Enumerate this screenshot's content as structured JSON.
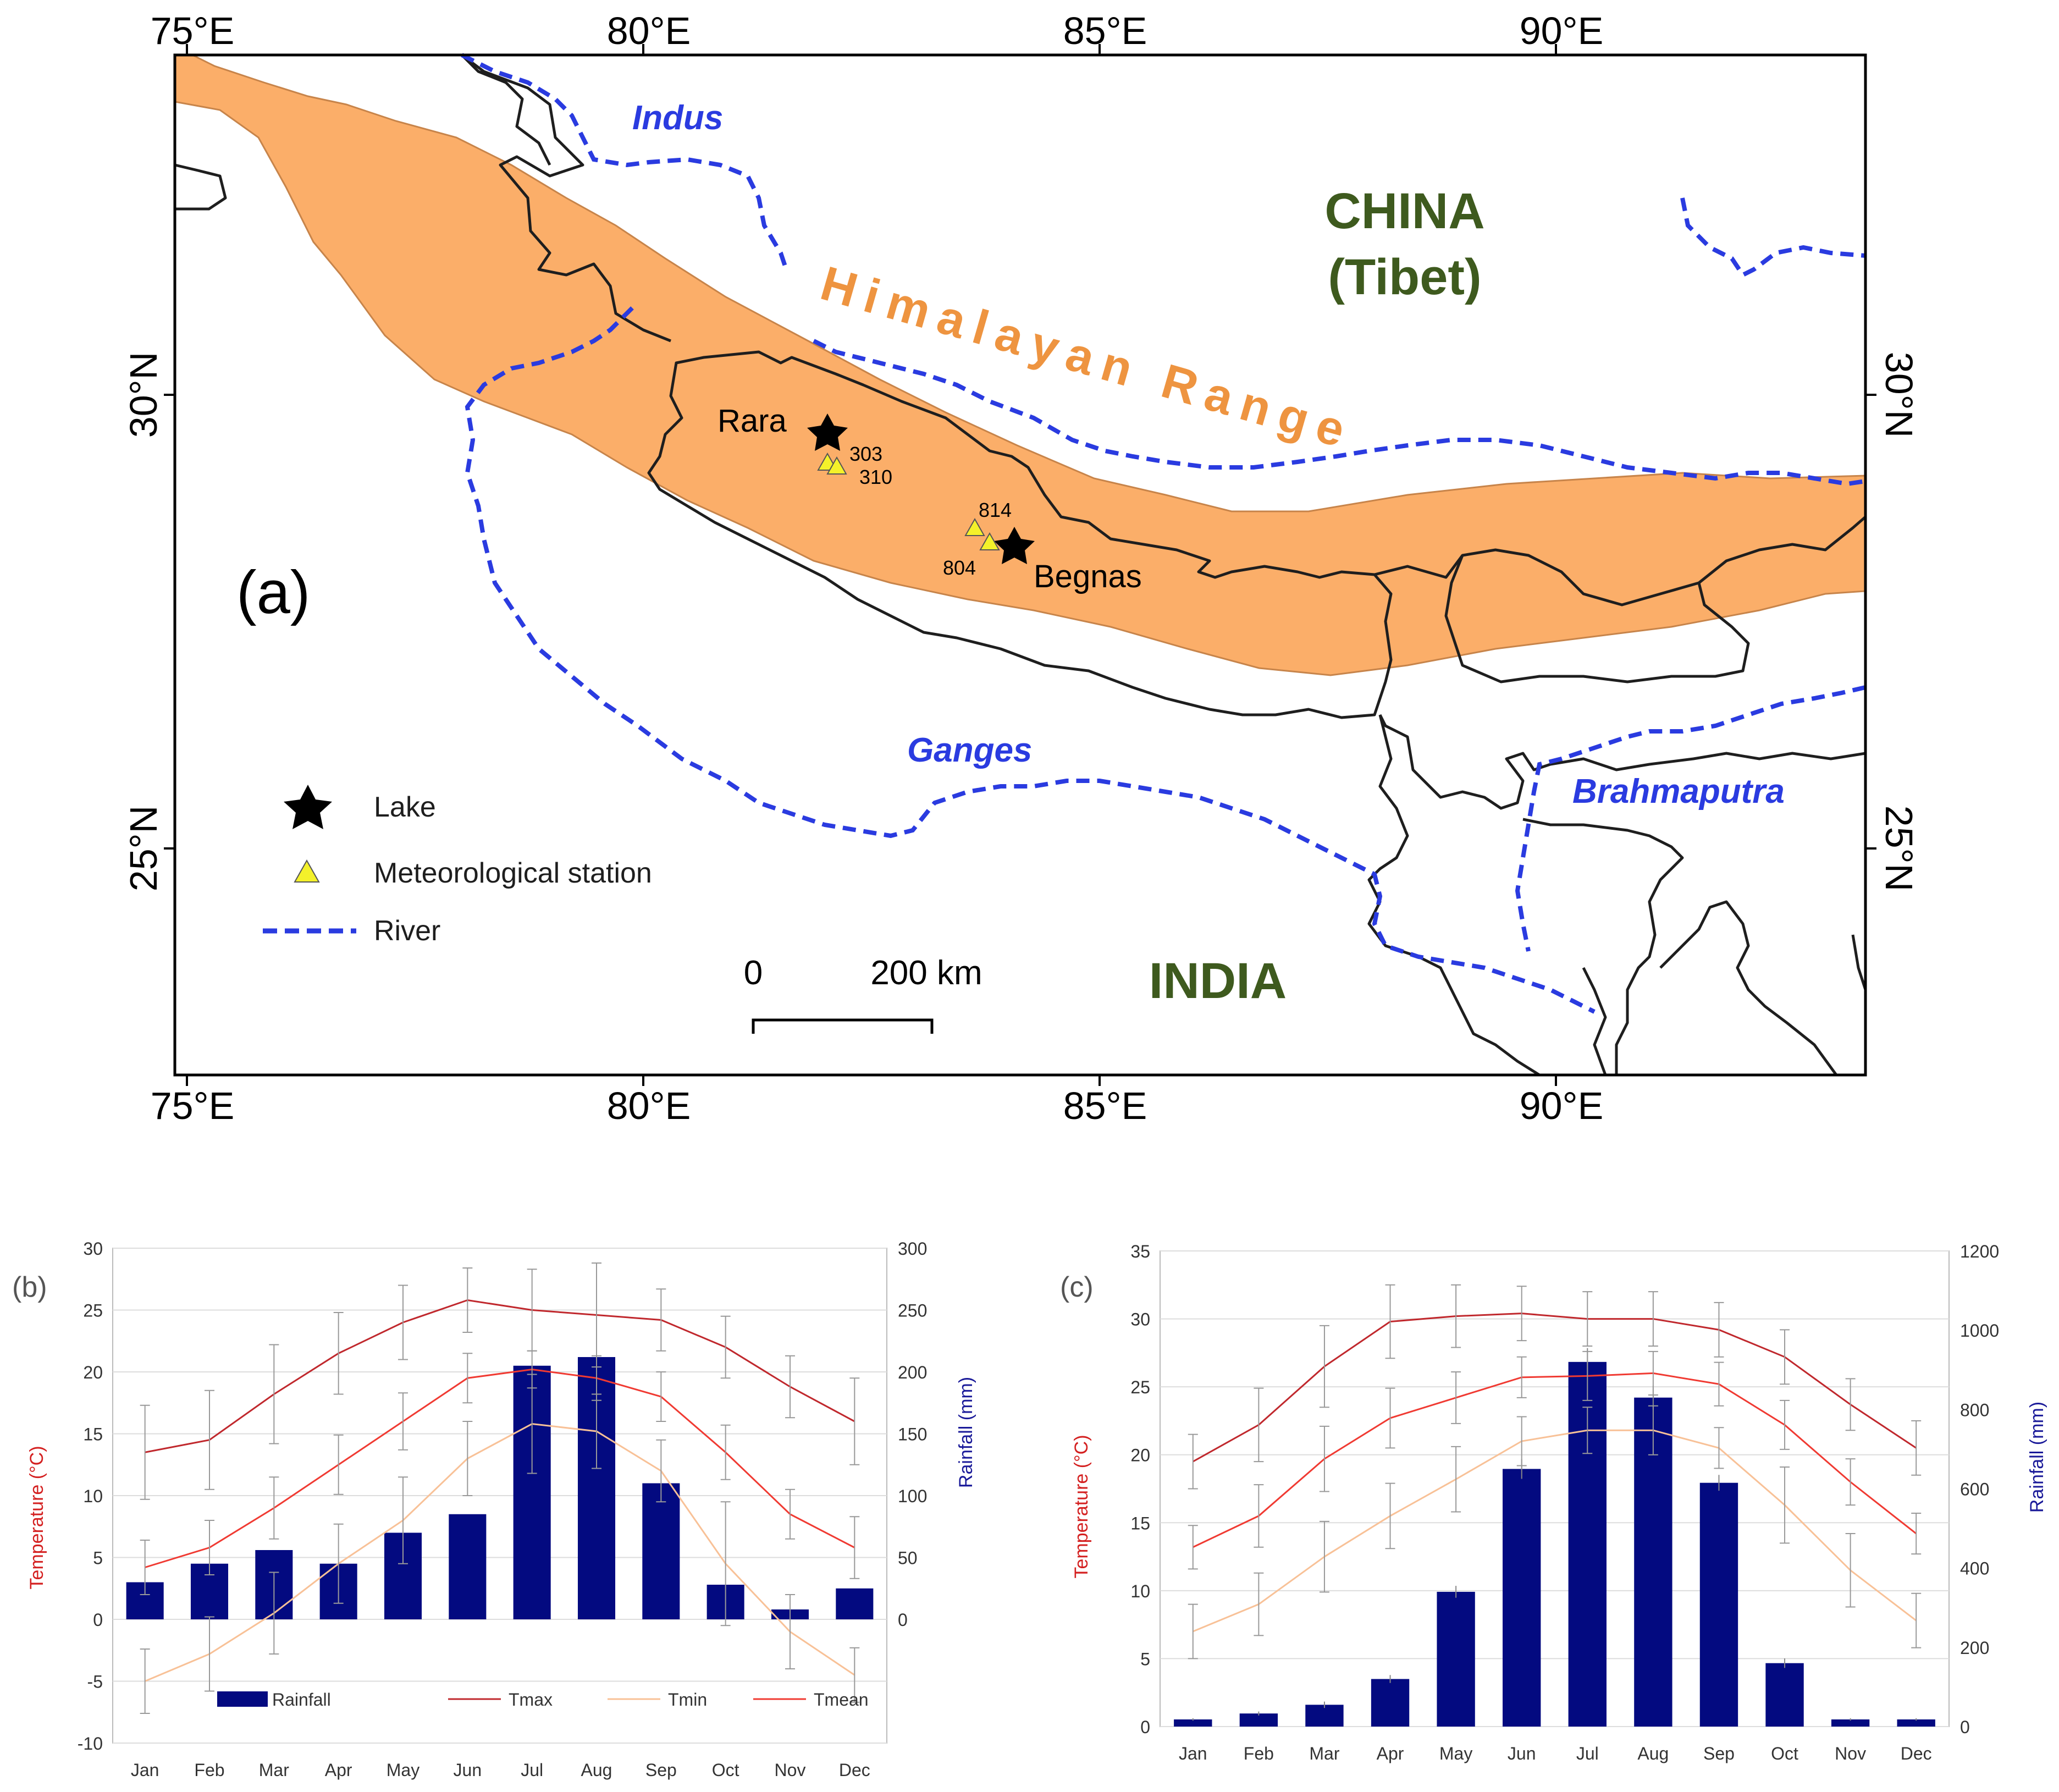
{
  "map": {
    "panel_label": "(a)",
    "lon_labels": [
      "75°E",
      "80°E",
      "85°E",
      "90°E"
    ],
    "lat_labels": [
      "30°N",
      "25°N"
    ],
    "country_china_line1": "CHINA",
    "country_china_line2": "(Tibet)",
    "country_india": "INDIA",
    "range_label": "Himalayan Range",
    "rivers": {
      "indus": "Indus",
      "ganges": "Ganges",
      "brahmaputra": "Brahmaputra"
    },
    "lakes": {
      "rara": "Rara",
      "begnas": "Begnas"
    },
    "stations": [
      "303",
      "310",
      "814",
      "804"
    ],
    "legend": {
      "lake": "Lake",
      "station": "Meteorological station",
      "river": "River"
    },
    "scale": {
      "zero": "0",
      "distance": "200 km"
    },
    "colors": {
      "range": "#FBAE69",
      "river": "#2A3BE0",
      "border": "#1E1E1E",
      "range_text": "#EE9440",
      "country_text": "#3E5A1E",
      "station": "#F4F12A"
    }
  },
  "charts": {
    "months": [
      "Jan",
      "Feb",
      "Mar",
      "Apr",
      "May",
      "Jun",
      "Jul",
      "Aug",
      "Sep",
      "Oct",
      "Nov",
      "Dec"
    ]
  },
  "chart_data": [
    {
      "type": "bar+line",
      "panel_label": "(b)",
      "ylabel": "Temperature (°C)",
      "y2label": "Rainfall (mm)",
      "ylim": [
        -10,
        30
      ],
      "yticks": [
        "-10",
        "-5",
        "0",
        "5",
        "10",
        "15",
        "20",
        "25",
        "30"
      ],
      "y2lim": [
        -100,
        300
      ],
      "y2ticks": [
        "0",
        "50",
        "100",
        "150",
        "200",
        "250",
        "300"
      ],
      "categories": [
        "Jan",
        "Feb",
        "Mar",
        "Apr",
        "May",
        "Jun",
        "Jul",
        "Aug",
        "Sep",
        "Oct",
        "Nov",
        "Dec"
      ],
      "legend": [
        "Rainfall",
        "Tmax",
        "Tmin",
        "Tmean"
      ],
      "rainfall": [
        30,
        45,
        56,
        45,
        70,
        85,
        205,
        212,
        110,
        28,
        8,
        25
      ],
      "tmax": [
        13.5,
        14.5,
        18.2,
        21.5,
        24.0,
        25.8,
        25.0,
        24.6,
        24.2,
        22.0,
        18.8,
        16.0
      ],
      "tmax_err": [
        3.8,
        4.0,
        4.0,
        3.3,
        3.0,
        2.6,
        3.3,
        4.2,
        2.5,
        2.5,
        2.5,
        3.5
      ],
      "tmean": [
        4.2,
        5.8,
        9.0,
        12.5,
        16.0,
        19.5,
        20.2,
        19.5,
        18.0,
        13.5,
        8.5,
        5.8
      ],
      "tmean_err": [
        2.2,
        2.2,
        2.5,
        2.4,
        2.3,
        2.0,
        1.5,
        1.8,
        2.0,
        2.2,
        2.0,
        2.5
      ],
      "tmin": [
        -5.0,
        -2.8,
        0.5,
        4.5,
        8.0,
        13.0,
        15.8,
        15.2,
        12.0,
        4.5,
        -1.0,
        -4.5
      ],
      "tmin_err": [
        2.6,
        3.0,
        3.3,
        3.2,
        3.5,
        3.0,
        4.0,
        3.0,
        2.5,
        5.0,
        3.0,
        2.2
      ]
    },
    {
      "type": "bar+line",
      "panel_label": "(c)",
      "ylabel": "Temperature (°C)",
      "y2label": "Rainfall (mm)",
      "ylim": [
        0,
        35
      ],
      "yticks": [
        "0",
        "5",
        "10",
        "15",
        "20",
        "25",
        "30",
        "35"
      ],
      "y2lim": [
        0,
        1200
      ],
      "y2ticks": [
        "0",
        "200",
        "400",
        "600",
        "800",
        "1000",
        "1200"
      ],
      "categories": [
        "Jan",
        "Feb",
        "Mar",
        "Apr",
        "May",
        "Jun",
        "Jul",
        "Aug",
        "Sep",
        "Oct",
        "Nov",
        "Dec"
      ],
      "rainfall": [
        18,
        33,
        55,
        120,
        340,
        650,
        920,
        830,
        615,
        160,
        18,
        18
      ],
      "rainfall_err": [
        3,
        5,
        8,
        10,
        15,
        25,
        35,
        30,
        20,
        12,
        3,
        3
      ],
      "tmax": [
        19.5,
        22.2,
        26.5,
        29.8,
        30.2,
        30.4,
        30.0,
        30.0,
        29.2,
        27.2,
        23.7,
        20.5
      ],
      "tmax_err": [
        2.0,
        2.7,
        3.0,
        2.7,
        2.3,
        2.0,
        2.0,
        2.0,
        2.0,
        2.0,
        1.9,
        2.0
      ],
      "tmean": [
        13.2,
        15.5,
        19.7,
        22.7,
        24.2,
        25.7,
        25.8,
        26.0,
        25.2,
        22.2,
        18.0,
        14.2
      ],
      "tmean_err": [
        1.6,
        2.3,
        2.4,
        2.2,
        1.9,
        1.5,
        1.8,
        1.6,
        1.6,
        1.8,
        1.7,
        1.5
      ],
      "tmin": [
        7.0,
        9.0,
        12.5,
        15.5,
        18.2,
        21.0,
        21.8,
        21.8,
        20.5,
        16.3,
        11.5,
        7.8
      ],
      "tmin_err": [
        2.0,
        2.3,
        2.6,
        2.4,
        2.4,
        1.8,
        1.7,
        1.8,
        1.5,
        2.8,
        2.7,
        2.0
      ]
    }
  ]
}
